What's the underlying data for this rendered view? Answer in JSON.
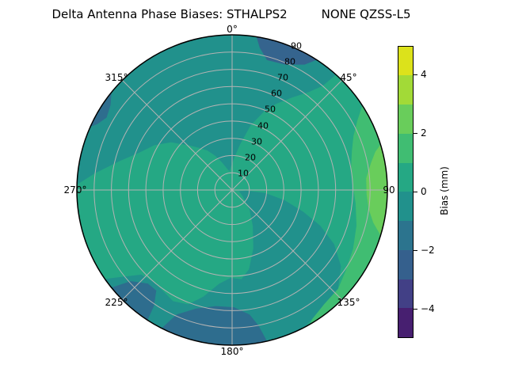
{
  "figure": {
    "title": "Delta Antenna Phase Biases: STHALPS2         NONE QZSS-L5"
  },
  "chart_data": {
    "type": "polar_contour",
    "title_parts": [
      "Delta Antenna Phase Biases: STHALPS2",
      "NONE QZSS-L5"
    ],
    "theta_ticks": [
      {
        "angle_deg": 0,
        "label": "0°"
      },
      {
        "angle_deg": 45,
        "label": "45°"
      },
      {
        "angle_deg": 90,
        "label": "90"
      },
      {
        "angle_deg": 135,
        "label": "135°"
      },
      {
        "angle_deg": 180,
        "label": "180°"
      },
      {
        "angle_deg": 225,
        "label": "225°"
      },
      {
        "angle_deg": 270,
        "label": "270°"
      },
      {
        "angle_deg": 315,
        "label": "315°"
      }
    ],
    "r_ticks": [
      "10",
      "20",
      "30",
      "40",
      "50",
      "60",
      "70",
      "80",
      "90"
    ],
    "r_max": 90,
    "r_label_azimuth_deg": 22.5,
    "grid_color": "#b3b3b3",
    "outline_color": "#000000",
    "palette": {
      "bias_2_to_3": "#69cd5b",
      "bias_1_to_2": "#40bd72",
      "bias_0_to_1": "#25a884",
      "bias_m1_to_0": "#21918c",
      "bias_m2_to_m1": "#2e6d8e",
      "bias_m3_to_m2": "#35648e"
    },
    "base_band": "bias_0_to_1",
    "regions": [
      {
        "name": "dark-teal-top-cap",
        "band": "bias_m1_to_0",
        "rim": [
          272,
          42
        ],
        "inner": [
          [
            41,
            80
          ],
          [
            38,
            72
          ],
          [
            33,
            64
          ],
          [
            27,
            56
          ],
          [
            22,
            49
          ],
          [
            16,
            39
          ],
          [
            10,
            27
          ],
          [
            4,
            19
          ],
          [
            358,
            14
          ],
          [
            352,
            11
          ],
          [
            346,
            13
          ],
          [
            340,
            17
          ],
          [
            334,
            22
          ],
          [
            328,
            27
          ],
          [
            322,
            31
          ],
          [
            316,
            36
          ],
          [
            308,
            45
          ],
          [
            300,
            52
          ],
          [
            292,
            58
          ],
          [
            284,
            68
          ],
          [
            277,
            80
          ]
        ]
      },
      {
        "name": "dark-teal-southeast-wedge",
        "band": "bias_m1_to_0",
        "rim": [
          152,
          235
        ],
        "inner": [
          [
            232,
            82
          ],
          [
            227,
            72
          ],
          [
            220,
            70
          ],
          [
            214,
            71
          ],
          [
            208,
            73
          ],
          [
            201,
            71
          ],
          [
            195,
            64
          ],
          [
            188,
            55
          ],
          [
            181,
            51
          ],
          [
            174,
            52
          ],
          [
            168,
            47
          ],
          [
            160,
            36
          ],
          [
            150,
            24
          ],
          [
            138,
            15
          ],
          [
            120,
            7
          ],
          [
            100,
            4
          ],
          [
            92,
            8
          ],
          [
            95,
            19
          ],
          [
            101,
            31
          ],
          [
            107,
            43
          ],
          [
            112,
            55
          ],
          [
            118,
            67
          ],
          [
            125,
            77
          ],
          [
            133,
            84
          ],
          [
            146,
            87
          ]
        ]
      },
      {
        "name": "blue-bottom-band",
        "band": "bias_m2_to_m1",
        "rim": [
          167,
          207
        ],
        "inner": [
          [
            204,
            79
          ],
          [
            197,
            72
          ],
          [
            188,
            68
          ],
          [
            179,
            68
          ],
          [
            172,
            73
          ],
          [
            169,
            80
          ]
        ]
      },
      {
        "name": "blue-bottom-left-patch",
        "band": "bias_m2_to_m1",
        "rim": [
          213,
          231
        ],
        "inner": [
          [
            228,
            79
          ],
          [
            222,
            73
          ],
          [
            217,
            73
          ],
          [
            214,
            81
          ]
        ]
      },
      {
        "name": "blue-top-right-crescent",
        "band": "bias_m3_to_m2",
        "rim": [
          9,
          33
        ],
        "inner": [
          [
            30,
            84
          ],
          [
            23,
            79
          ],
          [
            15,
            78
          ],
          [
            11,
            84
          ]
        ]
      },
      {
        "name": "blue-top-left-sliver",
        "band": "bias_m2_to_m1",
        "rim": [
          294,
          309
        ],
        "inner": [
          [
            305,
            86
          ],
          [
            300,
            84
          ],
          [
            296,
            87
          ]
        ]
      },
      {
        "name": "green-east-band",
        "band": "bias_1_to_2",
        "rim": [
          57,
          150
        ],
        "inner": [
          [
            148,
            88
          ],
          [
            141,
            85
          ],
          [
            133,
            84
          ],
          [
            126,
            81
          ],
          [
            116,
            78
          ],
          [
            106,
            75
          ],
          [
            96,
            72
          ],
          [
            88,
            70
          ],
          [
            80,
            70
          ],
          [
            72,
            73
          ],
          [
            66,
            77
          ],
          [
            61,
            83
          ]
        ]
      },
      {
        "name": "bright-green-east-rim",
        "band": "bias_2_to_3",
        "rim": [
          73,
          107
        ],
        "inner": [
          [
            103,
            84
          ],
          [
            98,
            80
          ],
          [
            92,
            78
          ],
          [
            85,
            78
          ],
          [
            79,
            82
          ],
          [
            75,
            86
          ]
        ]
      }
    ],
    "colorbar": {
      "label": "Bias (mm)",
      "vmin": -5,
      "vmax": 5,
      "tick_values": [
        4,
        2,
        0,
        -2,
        -4
      ],
      "tick_labels": [
        "4",
        "2",
        "0",
        "−2",
        "−4"
      ],
      "segment_colors_top_to_bottom": [
        "#dce21b",
        "#a2da37",
        "#69cd5b",
        "#40bd72",
        "#25a884",
        "#21918c",
        "#2c748e",
        "#35608d",
        "#424086",
        "#471f70"
      ]
    }
  }
}
